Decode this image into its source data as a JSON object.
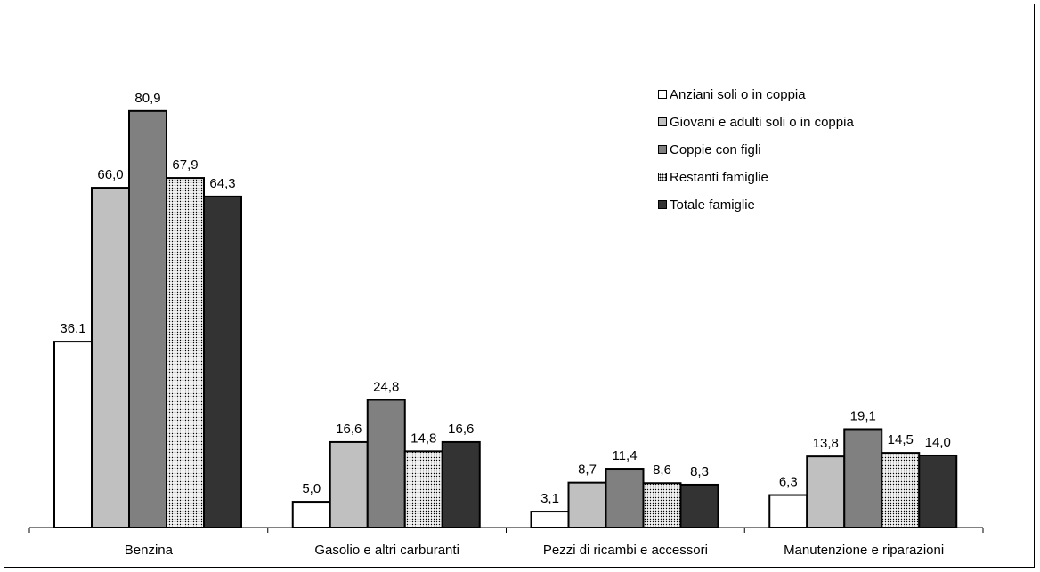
{
  "chart_data": {
    "type": "bar",
    "categories": [
      "Benzina",
      "Gasolio e altri   carburanti",
      "Pezzi di ricambi e accessori",
      "Manutenzione e riparazioni"
    ],
    "series": [
      {
        "name": "Anziani soli o in coppia",
        "values": [
          36.1,
          5.0,
          3.1,
          6.3
        ],
        "labels": [
          "36,1",
          "5,0",
          "3,1",
          "6,3"
        ],
        "color": "#ffffff",
        "pattern": "none"
      },
      {
        "name": "Giovani e adulti soli o in coppia",
        "values": [
          66.0,
          16.6,
          8.7,
          13.8
        ],
        "labels": [
          "66,0",
          "16,6",
          "8,7",
          "13,8"
        ],
        "color": "#c0c0c0",
        "pattern": "none"
      },
      {
        "name": "Coppie con figli",
        "values": [
          80.9,
          24.8,
          11.4,
          19.1
        ],
        "labels": [
          "80,9",
          "24,8",
          "11,4",
          "19,1"
        ],
        "color": "#808080",
        "pattern": "none"
      },
      {
        "name": "Restanti famiglie",
        "values": [
          67.9,
          14.8,
          8.6,
          14.5
        ],
        "labels": [
          "67,9",
          "14,8",
          "8,6",
          "14,5"
        ],
        "color": "#e8e8e8",
        "pattern": "dotted"
      },
      {
        "name": "Totale famiglie",
        "values": [
          64.3,
          16.6,
          8.3,
          14.0
        ],
        "labels": [
          "64,3",
          "16,6",
          "8,3",
          "14,0"
        ],
        "color": "#333333",
        "pattern": "none"
      }
    ],
    "title": "",
    "xlabel": "",
    "ylabel": "",
    "ylim": [
      0,
      100
    ],
    "grid": false,
    "legend_position": "top-right"
  }
}
